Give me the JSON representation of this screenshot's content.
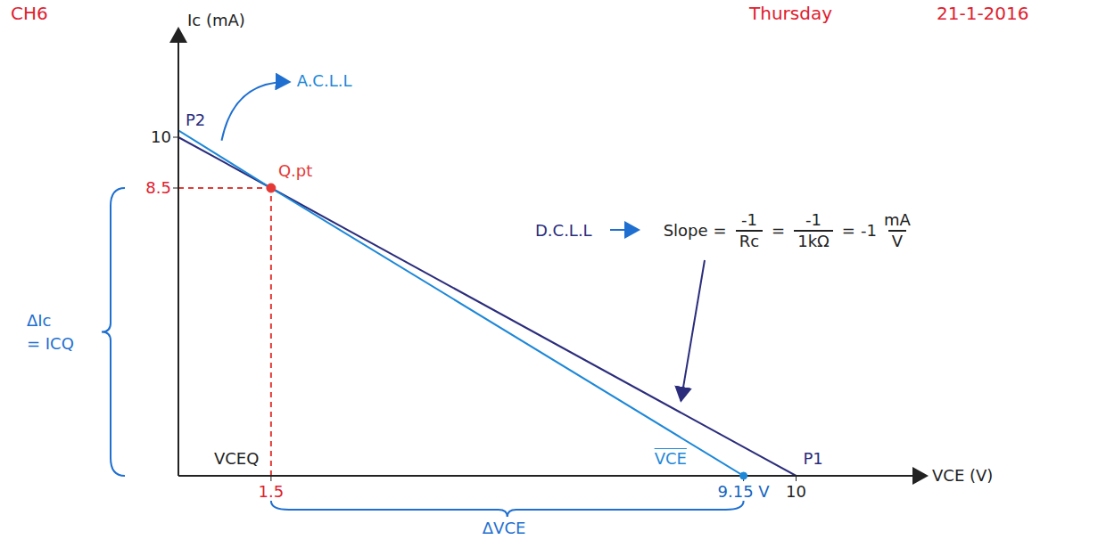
{
  "header": {
    "chapter": "CH6",
    "day": "Thursday",
    "date": "21-1-2016"
  },
  "chart_data": {
    "type": "line",
    "x_label": "VCE (V)",
    "y_label": "Ic (mA)",
    "xlim": [
      0,
      12
    ],
    "ylim": [
      0,
      13
    ],
    "xticks": [
      1.5,
      {
        "value": 9.15,
        "label": "9.15 V"
      },
      10
    ],
    "yticks": [
      8.5,
      10
    ],
    "grid": false,
    "series": [
      {
        "name": "D.C.L.L",
        "color": "#2b2d7c",
        "x": [
          0,
          1.5,
          10
        ],
        "values": [
          10,
          8.5,
          0
        ]
      },
      {
        "name": "A.C.L.L",
        "color": "#1e88d8",
        "x": [
          0,
          1.5,
          9.15
        ],
        "values": [
          10.2,
          8.5,
          0
        ]
      }
    ],
    "q_point": {
      "label": "Q.pt",
      "x": 1.5,
      "y": 8.5,
      "color": "#e53935"
    },
    "points": [
      {
        "label": "P2",
        "x": 0,
        "y": 10
      },
      {
        "label": "P1",
        "x": 10,
        "y": 0
      }
    ],
    "annotations": {
      "slope": {
        "lhs": "Slope",
        "eq": "=",
        "terms": [
          {
            "num": "-1",
            "den": "Rc"
          },
          {
            "num": "-1",
            "den": "1kΩ"
          },
          {
            "coef": "-1",
            "num": "mA",
            "den": "V"
          }
        ]
      },
      "delta_ic": {
        "text": "ΔIc",
        "eq": "= ICQ"
      },
      "delta_vce": "ΔVCE",
      "vceq": "VCEQ",
      "vce": "VCE"
    }
  }
}
